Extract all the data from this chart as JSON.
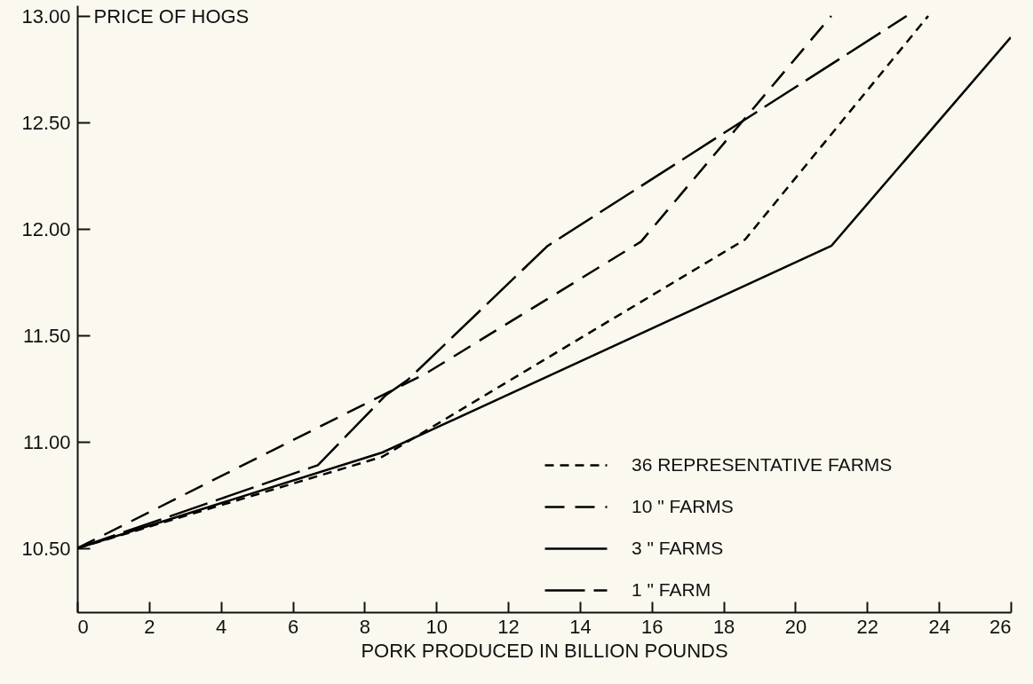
{
  "chart_data": {
    "type": "line",
    "xlabel": "PORK PRODUCED IN BILLION POUNDS",
    "ylabel": "PRICE OF HOGS",
    "xlim": [
      0,
      26
    ],
    "ylim": [
      10.2,
      13.05
    ],
    "xticks": [
      0,
      2,
      4,
      6,
      8,
      10,
      12,
      14,
      16,
      18,
      20,
      22,
      24,
      26
    ],
    "yticks": [
      {
        "value": 10.5,
        "label": "10.50"
      },
      {
        "value": 11,
        "label": "11.00"
      },
      {
        "value": 11.5,
        "label": "11.50"
      },
      {
        "value": 12,
        "label": "12.00"
      },
      {
        "value": 12.5,
        "label": "12.50"
      },
      {
        "value": 13,
        "label": "13.00"
      }
    ],
    "grid": false,
    "legend": "bottom right",
    "marker": "none",
    "series": [
      {
        "name": "36 REPRESENTATIVE FARMS",
        "color": "#000000",
        "line_style": "dashed",
        "x": [
          0,
          8.5,
          18.6,
          23.7
        ],
        "values": [
          10.5,
          10.93,
          11.95,
          13.0
        ]
      },
      {
        "name": "10 \" FARMS",
        "color": "#000000",
        "line_style": "dashed",
        "x": [
          0,
          9.7,
          15.7,
          21
        ],
        "values": [
          10.5,
          11.32,
          11.94,
          13.0
        ]
      },
      {
        "name": "3 \" FARMS",
        "color": "#000000",
        "line_style": "solid",
        "x": [
          0,
          8.5,
          21,
          26
        ],
        "values": [
          10.5,
          10.95,
          11.92,
          12.9
        ]
      },
      {
        "name": "1 \" FARM",
        "color": "#000000",
        "line_style": "dashed",
        "x": [
          0,
          6.7,
          8.6,
          9.2,
          13.1,
          23.1
        ],
        "values": [
          10.5,
          10.89,
          11.22,
          11.29,
          11.92,
          13.0
        ]
      }
    ]
  }
}
